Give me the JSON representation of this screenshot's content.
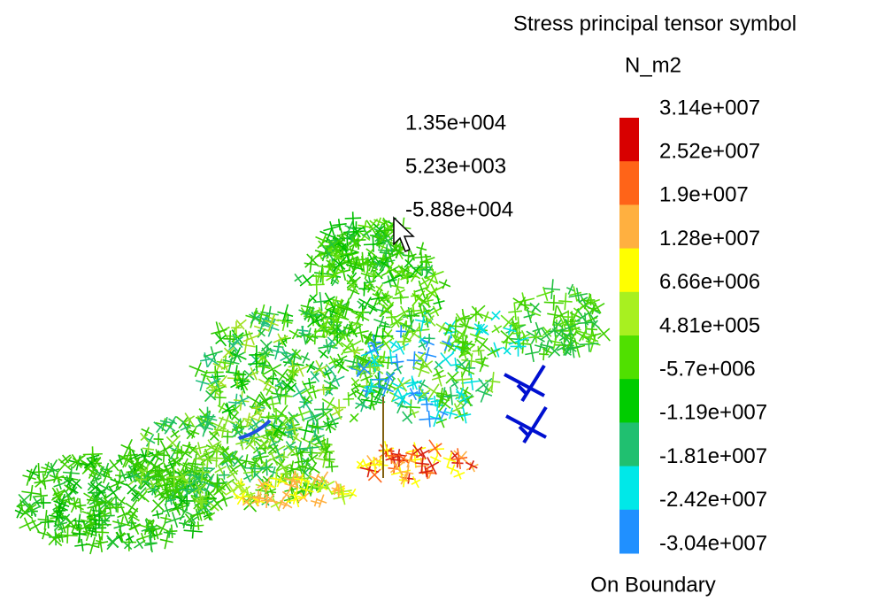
{
  "legend": {
    "title": "Stress principal tensor symbol",
    "unit": "N_m2",
    "levels": [
      "3.14e+007",
      "2.52e+007",
      "1.9e+007",
      "1.28e+007",
      "6.66e+006",
      "4.81e+005",
      "-5.7e+006",
      "-1.19e+007",
      "-1.81e+007",
      "-2.42e+007",
      "-3.04e+007"
    ],
    "colors": [
      "#d80000",
      "#ff6418",
      "#ffb040",
      "#ffff00",
      "#a8f020",
      "#50e000",
      "#00cc00",
      "#20c070",
      "#00e8e8",
      "#2090ff",
      "#0010d0"
    ],
    "footer": "On Boundary"
  },
  "probe": {
    "values": [
      "1.35e+004",
      "5.23e+003",
      "-5.88e+004"
    ],
    "color": "#3399ff"
  }
}
